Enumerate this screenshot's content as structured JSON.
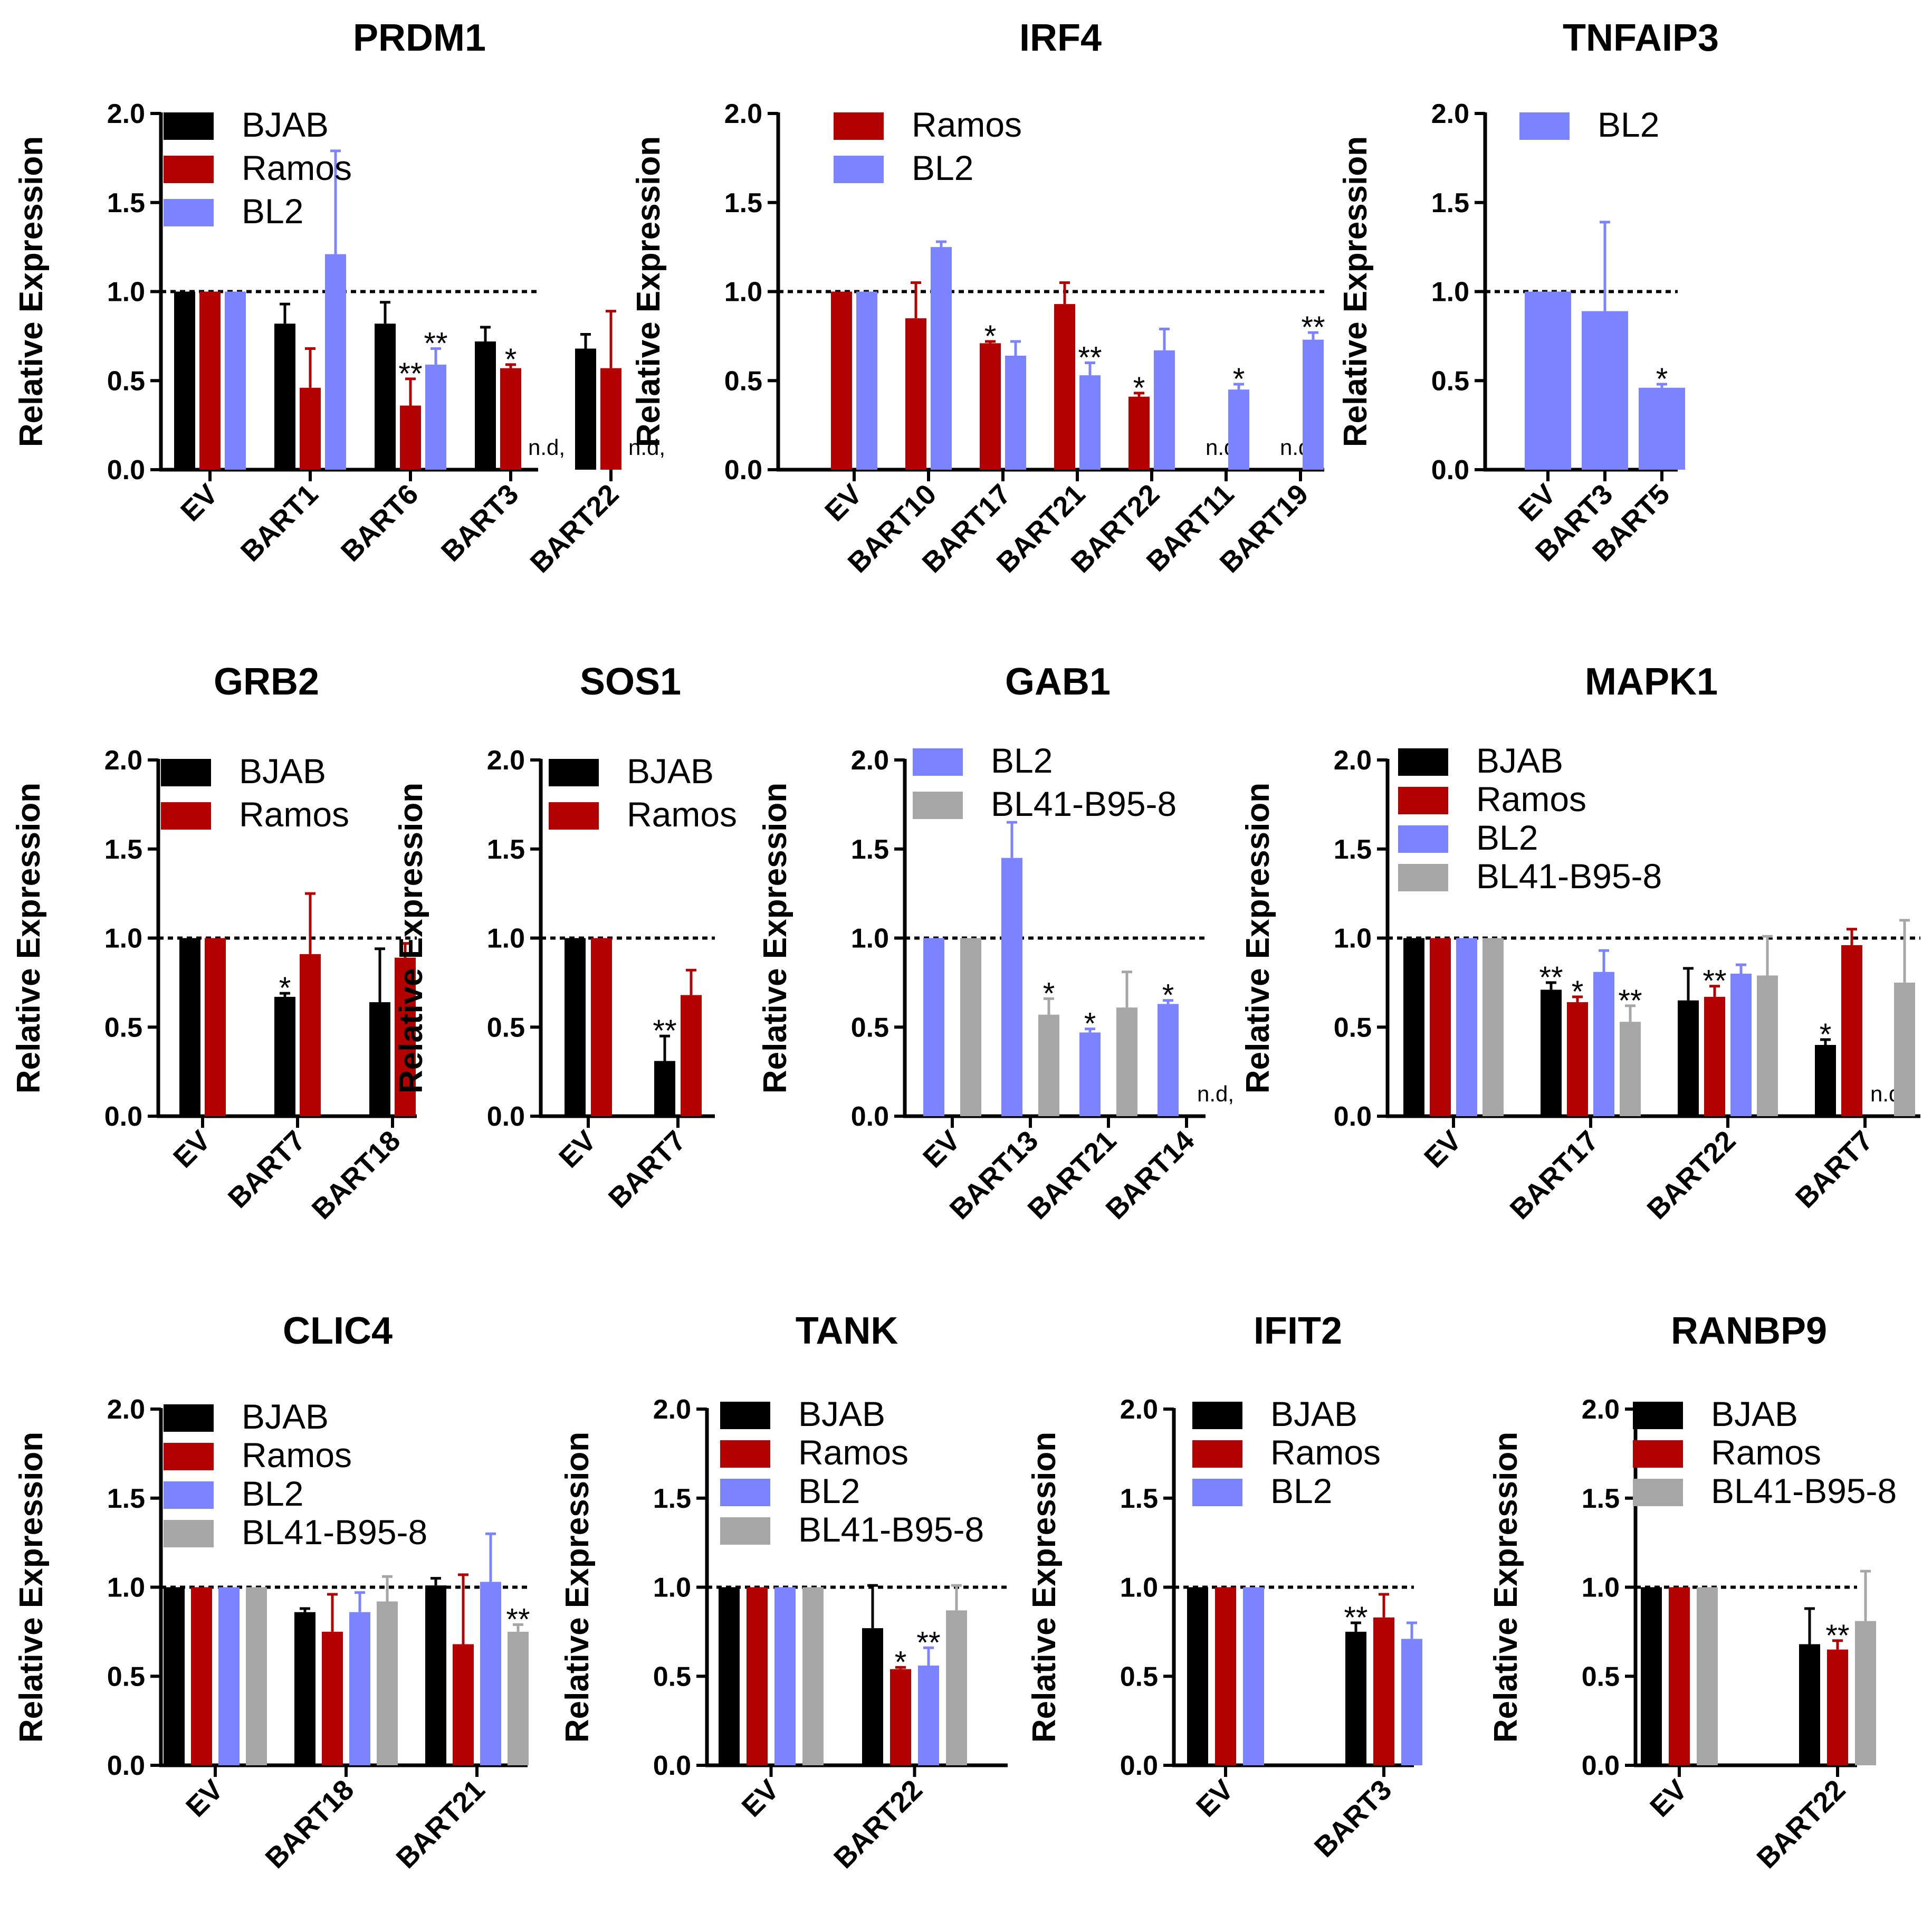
{
  "figure": {
    "ylabel": "Relative Expression",
    "yticks": [
      "0.0",
      "0.5",
      "1.0",
      "1.5",
      "2.0"
    ],
    "colors": {
      "BJAB": "#000000",
      "Ramos": "#b30000",
      "BL2": "#7b83ff",
      "BL41-B95-8": "#a6a6a6"
    }
  },
  "chart_data": [
    {
      "type": "bar",
      "title": "PRDM1",
      "ylabel": "Relative Expression",
      "ylim": [
        0,
        2
      ],
      "reference_line": 1.0,
      "categories": [
        "EV",
        "BART1",
        "BART6",
        "BART3",
        "BART22"
      ],
      "series": [
        {
          "name": "BJAB",
          "values": [
            1.0,
            0.82,
            0.82,
            0.72,
            0.68
          ],
          "errors": [
            0,
            0.11,
            0.12,
            0.08,
            0.08
          ],
          "annotations": [
            "",
            "",
            "",
            "",
            ""
          ]
        },
        {
          "name": "Ramos",
          "values": [
            1.0,
            0.46,
            0.36,
            0.57,
            0.57
          ],
          "errors": [
            0,
            0.22,
            0.15,
            0.02,
            0.32
          ],
          "annotations": [
            "",
            "",
            "**",
            "*",
            ""
          ]
        },
        {
          "name": "BL2",
          "values": [
            1.0,
            1.21,
            0.59,
            null,
            null
          ],
          "errors": [
            0,
            0.58,
            0.09,
            0,
            0
          ],
          "annotations": [
            "",
            "",
            "**",
            "n.d,",
            "n.d,"
          ]
        }
      ]
    },
    {
      "type": "bar",
      "title": "IRF4",
      "ylabel": "Relative Expression",
      "ylim": [
        0,
        2
      ],
      "reference_line": 1.0,
      "categories": [
        "EV",
        "BART10",
        "BART17",
        "BART21",
        "BART22",
        "BART11",
        "BART19"
      ],
      "series": [
        {
          "name": "Ramos",
          "values": [
            1.0,
            0.85,
            0.71,
            0.93,
            0.41,
            null,
            null
          ],
          "errors": [
            0,
            0.2,
            0.01,
            0.12,
            0.02,
            0,
            0
          ],
          "annotations": [
            "",
            "",
            "*",
            "",
            "*",
            "n.d,",
            "n.d,"
          ]
        },
        {
          "name": "BL2",
          "values": [
            1.0,
            1.25,
            0.64,
            0.53,
            0.67,
            0.45,
            0.73
          ],
          "errors": [
            0,
            0.03,
            0.08,
            0.07,
            0.12,
            0.03,
            0.04
          ],
          "annotations": [
            "",
            "",
            "",
            "**",
            "",
            "*",
            "**"
          ]
        }
      ]
    },
    {
      "type": "bar",
      "title": "TNFAIP3",
      "ylabel": "Relative Expression",
      "ylim": [
        0,
        2
      ],
      "reference_line": 1.0,
      "categories": [
        "EV",
        "BART3",
        "BART5"
      ],
      "series": [
        {
          "name": "BL2",
          "values": [
            1.0,
            0.89,
            0.46
          ],
          "errors": [
            0,
            0.5,
            0.02
          ],
          "annotations": [
            "",
            "",
            "*"
          ]
        }
      ]
    },
    {
      "type": "bar",
      "title": "GRB2",
      "ylabel": "Relative Expression",
      "ylim": [
        0,
        2
      ],
      "reference_line": 1.0,
      "categories": [
        "EV",
        "BART7",
        "BART18"
      ],
      "series": [
        {
          "name": "BJAB",
          "values": [
            1.0,
            0.67,
            0.64
          ],
          "errors": [
            0,
            0.02,
            0.3
          ],
          "annotations": [
            "",
            "*",
            ""
          ]
        },
        {
          "name": "Ramos",
          "values": [
            1.0,
            0.91,
            0.89
          ],
          "errors": [
            0,
            0.34,
            0.08
          ],
          "annotations": [
            "",
            "",
            ""
          ]
        }
      ]
    },
    {
      "type": "bar",
      "title": "SOS1",
      "ylabel": "Relative Expression",
      "ylim": [
        0,
        2
      ],
      "reference_line": 1.0,
      "categories": [
        "EV",
        "BART7"
      ],
      "series": [
        {
          "name": "BJAB",
          "values": [
            1.0,
            0.31
          ],
          "errors": [
            0,
            0.14
          ],
          "annotations": [
            "",
            "**"
          ]
        },
        {
          "name": "Ramos",
          "values": [
            1.0,
            0.68
          ],
          "errors": [
            0,
            0.14
          ],
          "annotations": [
            "",
            ""
          ]
        }
      ]
    },
    {
      "type": "bar",
      "title": "GAB1",
      "ylabel": "Relative Expression",
      "ylim": [
        0,
        2
      ],
      "reference_line": 1.0,
      "categories": [
        "EV",
        "BART13",
        "BART21",
        "BART14"
      ],
      "series": [
        {
          "name": "BL2",
          "values": [
            1.0,
            1.45,
            0.47,
            0.63
          ],
          "errors": [
            0,
            0.2,
            0.02,
            0.02
          ],
          "annotations": [
            "",
            "",
            "*",
            "*"
          ]
        },
        {
          "name": "BL41-B95-8",
          "values": [
            1.0,
            0.57,
            0.61,
            null
          ],
          "errors": [
            0,
            0.09,
            0.2,
            0
          ],
          "annotations": [
            "",
            "*",
            "",
            "n.d,"
          ]
        }
      ]
    },
    {
      "type": "bar",
      "title": "MAPK1",
      "ylabel": "Relative Expression",
      "ylim": [
        0,
        2
      ],
      "reference_line": 1.0,
      "categories": [
        "EV",
        "BART17",
        "BART22",
        "BART7"
      ],
      "series": [
        {
          "name": "BJAB",
          "values": [
            1.0,
            0.71,
            0.65,
            0.4
          ],
          "errors": [
            0,
            0.04,
            0.18,
            0.03
          ],
          "annotations": [
            "",
            "**",
            "",
            "*"
          ]
        },
        {
          "name": "Ramos",
          "values": [
            1.0,
            0.64,
            0.67,
            0.96
          ],
          "errors": [
            0,
            0.03,
            0.06,
            0.09
          ],
          "annotations": [
            "",
            "*",
            "**",
            ""
          ]
        },
        {
          "name": "BL2",
          "values": [
            1.0,
            0.81,
            0.8,
            null
          ],
          "errors": [
            0,
            0.12,
            0.05,
            0
          ],
          "annotations": [
            "",
            "",
            "",
            "n.d,"
          ]
        },
        {
          "name": "BL41-B95-8",
          "values": [
            1.0,
            0.53,
            0.79,
            0.75
          ],
          "errors": [
            0,
            0.09,
            0.22,
            0.35
          ],
          "annotations": [
            "",
            "**",
            "",
            ""
          ]
        }
      ]
    },
    {
      "type": "bar",
      "title": "CLIC4",
      "ylabel": "Relative Expression",
      "ylim": [
        0,
        2
      ],
      "reference_line": 1.0,
      "categories": [
        "EV",
        "BART18",
        "BART21"
      ],
      "series": [
        {
          "name": "BJAB",
          "values": [
            1.0,
            0.86,
            1.01
          ],
          "errors": [
            0,
            0.02,
            0.04
          ],
          "annotations": [
            "",
            "",
            ""
          ]
        },
        {
          "name": "Ramos",
          "values": [
            1.0,
            0.75,
            0.68
          ],
          "errors": [
            0,
            0.21,
            0.39
          ],
          "annotations": [
            "",
            "",
            ""
          ]
        },
        {
          "name": "BL2",
          "values": [
            1.0,
            0.86,
            1.03
          ],
          "errors": [
            0,
            0.11,
            0.27
          ],
          "annotations": [
            "",
            "",
            ""
          ]
        },
        {
          "name": "BL41-B95-8",
          "values": [
            1.0,
            0.92,
            0.75
          ],
          "errors": [
            0,
            0.14,
            0.04
          ],
          "annotations": [
            "",
            "",
            "**"
          ]
        }
      ]
    },
    {
      "type": "bar",
      "title": "TANK",
      "ylabel": "Relative Expression",
      "ylim": [
        0,
        2
      ],
      "reference_line": 1.0,
      "categories": [
        "EV",
        "BART22"
      ],
      "series": [
        {
          "name": "BJAB",
          "values": [
            1.0,
            0.77
          ],
          "errors": [
            0,
            0.24
          ],
          "annotations": [
            "",
            ""
          ]
        },
        {
          "name": "Ramos",
          "values": [
            1.0,
            0.54
          ],
          "errors": [
            0,
            0.01
          ],
          "annotations": [
            "",
            "*"
          ]
        },
        {
          "name": "BL2",
          "values": [
            1.0,
            0.56
          ],
          "errors": [
            0,
            0.1
          ],
          "annotations": [
            "",
            "**"
          ]
        },
        {
          "name": "BL41-B95-8",
          "values": [
            1.0,
            0.87
          ],
          "errors": [
            0,
            0.14
          ],
          "annotations": [
            "",
            ""
          ]
        }
      ]
    },
    {
      "type": "bar",
      "title": "IFIT2",
      "ylabel": "Relative Expression",
      "ylim": [
        0,
        2
      ],
      "reference_line": 1.0,
      "categories": [
        "EV",
        "BART3"
      ],
      "series": [
        {
          "name": "BJAB",
          "values": [
            1.0,
            0.75
          ],
          "errors": [
            0,
            0.05
          ],
          "annotations": [
            "",
            "**"
          ]
        },
        {
          "name": "Ramos",
          "values": [
            1.0,
            0.83
          ],
          "errors": [
            0,
            0.13
          ],
          "annotations": [
            "",
            ""
          ]
        },
        {
          "name": "BL2",
          "values": [
            1.0,
            0.71
          ],
          "errors": [
            0,
            0.09
          ],
          "annotations": [
            "",
            ""
          ]
        }
      ]
    },
    {
      "type": "bar",
      "title": "RANBP9",
      "ylabel": "Relative Expression",
      "ylim": [
        0,
        2
      ],
      "reference_line": 1.0,
      "categories": [
        "EV",
        "BART22"
      ],
      "series": [
        {
          "name": "BJAB",
          "values": [
            1.0,
            0.68
          ],
          "errors": [
            0,
            0.2
          ],
          "annotations": [
            "",
            ""
          ]
        },
        {
          "name": "Ramos",
          "values": [
            1.0,
            0.65
          ],
          "errors": [
            0,
            0.05
          ],
          "annotations": [
            "",
            "**"
          ]
        },
        {
          "name": "BL41-B95-8",
          "values": [
            1.0,
            0.81
          ],
          "errors": [
            0,
            0.28
          ],
          "annotations": [
            "",
            ""
          ]
        }
      ]
    }
  ]
}
